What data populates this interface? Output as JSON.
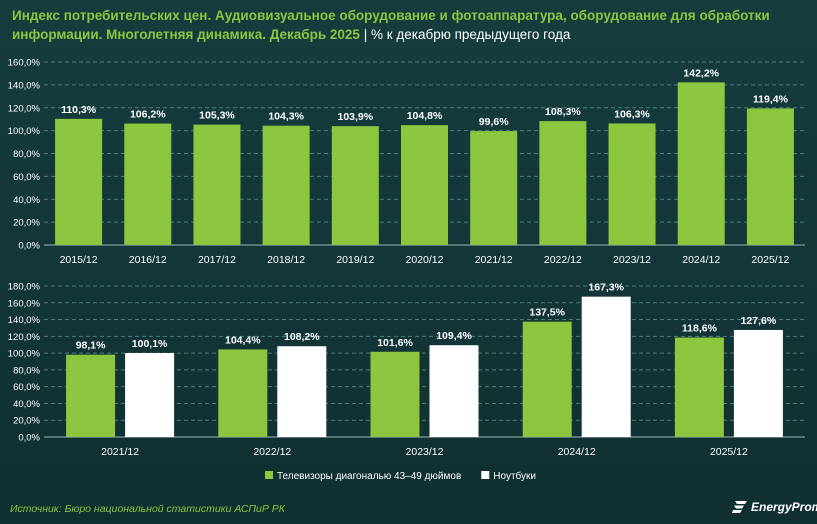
{
  "header": {
    "title_main": "Индекс потребительских цен. Аудиовизуальное оборудование и фотоаппаратура, оборудование для обработки информации. Многолетняя динамика. Декабрь 2025",
    "title_sep": "|",
    "title_sub": "% к декабрю предыдущего года"
  },
  "colors": {
    "green": "#8dc63f",
    "white": "#ffffff",
    "background": "#143839",
    "grid": "#4e7f7d"
  },
  "chart_data": [
    {
      "type": "bar",
      "categories": [
        "2015/12",
        "2016/12",
        "2017/12",
        "2018/12",
        "2019/12",
        "2020/12",
        "2021/12",
        "2022/12",
        "2023/12",
        "2024/12",
        "2025/12"
      ],
      "series": [
        {
          "values": [
            110.3,
            106.2,
            105.3,
            104.3,
            103.9,
            104.8,
            99.6,
            108.3,
            106.3,
            142.2,
            119.4
          ],
          "labels": [
            "110,3%",
            "106,2%",
            "105,3%",
            "104,3%",
            "103,9%",
            "104,8%",
            "99,6%",
            "108,3%",
            "106,3%",
            "142,2%",
            "119,4%"
          ]
        }
      ],
      "yticks": [
        "0,0%",
        "20,0%",
        "40,0%",
        "60,0%",
        "80,0%",
        "100,0%",
        "120,0%",
        "140,0%",
        "160,0%"
      ],
      "ylim": [
        0,
        160
      ],
      "grid": true
    },
    {
      "type": "bar",
      "categories": [
        "2021/12",
        "2022/12",
        "2023/12",
        "2024/12",
        "2025/12"
      ],
      "series": [
        {
          "name": "Телевизоры диагональю 43–49 дюймов",
          "values": [
            98.1,
            104.4,
            101.6,
            137.5,
            118.6
          ],
          "labels": [
            "98,1%",
            "104,4%",
            "101,6%",
            "137,5%",
            "118,6%"
          ]
        },
        {
          "name": "Ноутбуки",
          "values": [
            100.1,
            108.2,
            109.4,
            167.3,
            127.6
          ],
          "labels": [
            "100,1%",
            "108,2%",
            "109,4%",
            "167,3%",
            "127,6%"
          ]
        }
      ],
      "yticks": [
        "0,0%",
        "20,0%",
        "40,0%",
        "60,0%",
        "80,0%",
        "100,0%",
        "120,0%",
        "140,0%",
        "160,0%",
        "180,0%"
      ],
      "ylim": [
        0,
        180
      ],
      "grid": true,
      "legend": "bottom-center"
    }
  ],
  "footer": {
    "source": "Источник: Бюро национальной статистики АСПиР РК",
    "logo_text": "EnergyProm"
  }
}
